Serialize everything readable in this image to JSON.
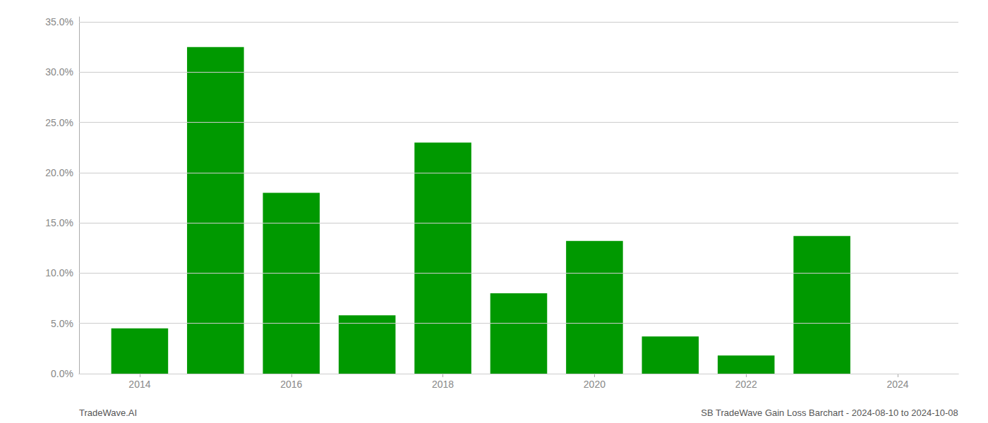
{
  "chart_data": {
    "type": "bar",
    "x": [
      2014,
      2015,
      2016,
      2017,
      2018,
      2019,
      2020,
      2021,
      2022,
      2023
    ],
    "values": [
      0.045,
      0.325,
      0.18,
      0.058,
      0.23,
      0.08,
      0.132,
      0.037,
      0.018,
      0.137
    ],
    "color": "#009900",
    "xlim": [
      2013.2,
      2024.8
    ],
    "xticks": [
      2014,
      2016,
      2018,
      2020,
      2022,
      2024
    ],
    "ylim": [
      0,
      0.355
    ],
    "yticks": [
      {
        "value": 0.0,
        "label": "0.0%"
      },
      {
        "value": 0.05,
        "label": "5.0%"
      },
      {
        "value": 0.1,
        "label": "10.0%"
      },
      {
        "value": 0.15,
        "label": "15.0%"
      },
      {
        "value": 0.2,
        "label": "20.0%"
      },
      {
        "value": 0.25,
        "label": "25.0%"
      },
      {
        "value": 0.3,
        "label": "30.0%"
      },
      {
        "value": 0.35,
        "label": "35.0%"
      }
    ],
    "grid": true,
    "annotations": [
      "TradeWave.AI",
      "SB TradeWave Gain Loss Barchart - 2024-08-10 to 2024-10-08"
    ]
  }
}
